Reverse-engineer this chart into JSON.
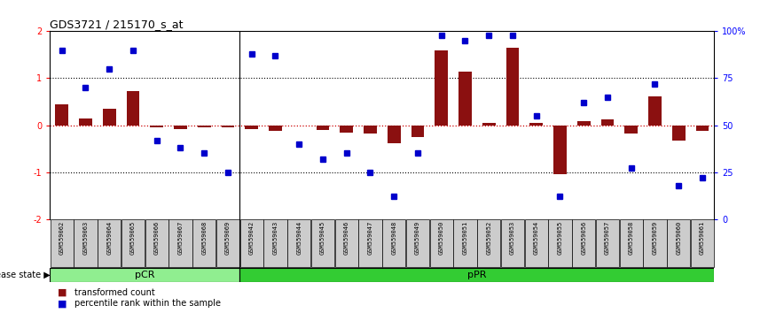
{
  "title": "GDS3721 / 215170_s_at",
  "samples": [
    "GSM559062",
    "GSM559063",
    "GSM559064",
    "GSM559065",
    "GSM559066",
    "GSM559067",
    "GSM559068",
    "GSM559069",
    "GSM559042",
    "GSM559043",
    "GSM559044",
    "GSM559045",
    "GSM559046",
    "GSM559047",
    "GSM559048",
    "GSM559049",
    "GSM559050",
    "GSM559051",
    "GSM559052",
    "GSM559053",
    "GSM559054",
    "GSM559055",
    "GSM559056",
    "GSM559057",
    "GSM559058",
    "GSM559059",
    "GSM559060",
    "GSM559061"
  ],
  "red_bars": [
    0.45,
    0.15,
    0.35,
    0.72,
    -0.05,
    -0.08,
    -0.05,
    -0.05,
    -0.08,
    -0.12,
    0.0,
    -0.1,
    -0.15,
    -0.18,
    -0.38,
    -0.25,
    1.6,
    1.15,
    0.05,
    1.65,
    0.05,
    -1.05,
    0.08,
    0.12,
    -0.18,
    0.62,
    -0.32,
    -0.12
  ],
  "blue_dots_pct": [
    90,
    70,
    80,
    90,
    42,
    38,
    35,
    25,
    88,
    87,
    40,
    32,
    35,
    25,
    12,
    35,
    98,
    95,
    98,
    98,
    55,
    12,
    62,
    65,
    27,
    72,
    18,
    22
  ],
  "pCR_count": 8,
  "pPR_count": 20,
  "ylim": [
    -2,
    2
  ],
  "right_ylim": [
    0,
    100
  ],
  "bar_color": "#8B1010",
  "dot_color": "#0000CC",
  "zero_line_color": "#CC0000",
  "dotted_line_color": "#000000",
  "pCR_color": "#90EE90",
  "pPR_color": "#33CC33",
  "label_bg_color": "#CCCCCC",
  "legend_red": "transformed count",
  "legend_blue": "percentile rank within the sample",
  "disease_state_label": "disease state"
}
